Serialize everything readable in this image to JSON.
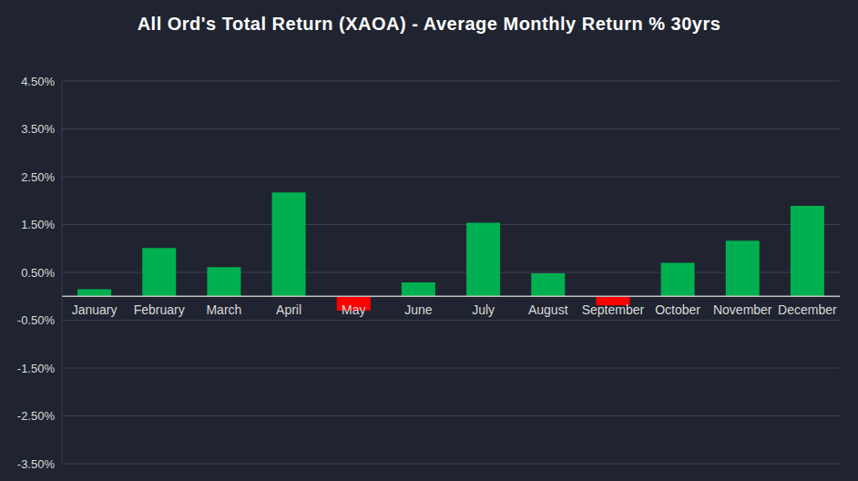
{
  "chart_data": {
    "type": "bar",
    "title": "All Ord's Total Return (XAOA) - Average Monthly Return % 30yrs",
    "categories": [
      "January",
      "February",
      "March",
      "April",
      "May",
      "June",
      "July",
      "August",
      "September",
      "October",
      "November",
      "December"
    ],
    "values": [
      0.15,
      1.01,
      0.61,
      2.17,
      -0.3,
      0.29,
      1.54,
      0.48,
      -0.19,
      0.7,
      1.16,
      1.89
    ],
    "colors": [
      "#00b050",
      "#00b050",
      "#00b050",
      "#00b050",
      "#ff0000",
      "#00b050",
      "#00b050",
      "#00b050",
      "#ff0000",
      "#00b050",
      "#00b050",
      "#00b050"
    ],
    "ylim": [
      -3.5,
      4.5
    ],
    "yticks": [
      {
        "value": 4.5,
        "label": "4.50%"
      },
      {
        "value": 3.5,
        "label": "3.50%"
      },
      {
        "value": 2.5,
        "label": "2.50%"
      },
      {
        "value": 1.5,
        "label": "1.50%"
      },
      {
        "value": 0.5,
        "label": "0.50%"
      },
      {
        "value": -0.5,
        "label": "-0.50%"
      },
      {
        "value": -1.5,
        "label": "-1.50%"
      },
      {
        "value": -2.5,
        "label": "-2.50%"
      },
      {
        "value": -3.5,
        "label": "-3.50%"
      }
    ],
    "grid": true
  }
}
